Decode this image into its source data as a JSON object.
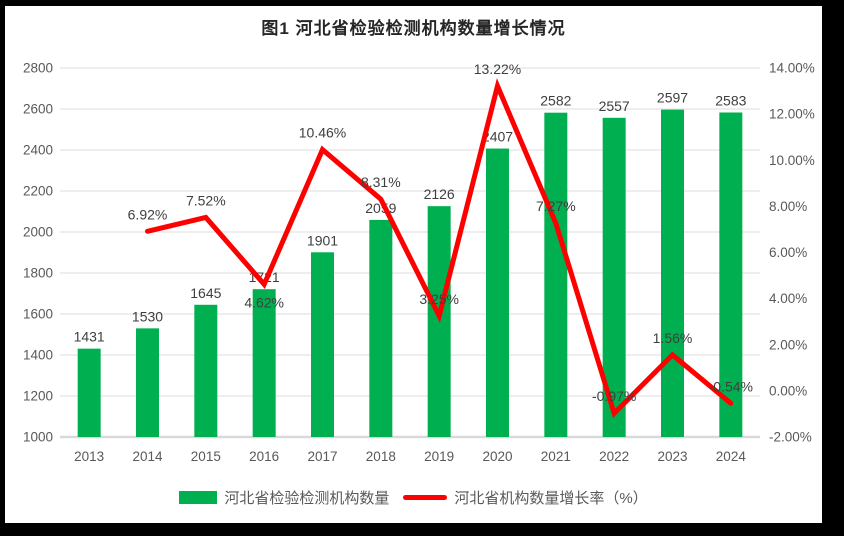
{
  "chart_data": {
    "type": "combo (bar + line)",
    "title": "图1  河北省检验检测机构数量增长情况",
    "categories": [
      "2013",
      "2014",
      "2015",
      "2016",
      "2017",
      "2018",
      "2019",
      "2020",
      "2021",
      "2022",
      "2023",
      "2024"
    ],
    "series": [
      {
        "name": "河北省检验检测机构数量",
        "type": "bar",
        "axis": "left",
        "color": "#00B050",
        "values": [
          1431,
          1530,
          1645,
          1721,
          1901,
          2059,
          2126,
          2407,
          2582,
          2557,
          2597,
          2583
        ],
        "labels": [
          "1431",
          "1530",
          "1645",
          "1721",
          "1901",
          "2059",
          "2126",
          "2407",
          "2582",
          "2557",
          "2597",
          "2583"
        ]
      },
      {
        "name": "河北省机构数量增长率（%）",
        "type": "line",
        "axis": "right",
        "color": "#FF0000",
        "start_index": 1,
        "values": [
          6.92,
          7.52,
          4.62,
          10.46,
          8.31,
          3.25,
          13.22,
          7.27,
          -0.97,
          1.56,
          -0.54
        ],
        "labels": [
          "6.92%",
          "7.52%",
          "4.62%",
          "10.46%",
          "8.31%",
          "3.25%",
          "13.22%",
          "7.27%",
          "-0.97%",
          "1.56%",
          "-0.54%"
        ]
      }
    ],
    "left_axis": {
      "min": 1000,
      "max": 2800,
      "step": 200,
      "tick_labels": [
        "1000",
        "1200",
        "1400",
        "1600",
        "1800",
        "2000",
        "2200",
        "2400",
        "2600",
        "2800"
      ]
    },
    "right_axis": {
      "min": -2,
      "max": 14,
      "step": 2,
      "tick_labels": [
        "-2.00%",
        "0.00%",
        "2.00%",
        "4.00%",
        "6.00%",
        "8.00%",
        "10.00%",
        "12.00%",
        "14.00%"
      ]
    },
    "grid": true,
    "legend_position": "bottom",
    "colors": {
      "grid_line": "#E4E4E4",
      "axis_line": "#D9D9D9",
      "tick_label": "#595959",
      "data_label": "#3F3F3F",
      "title": "#262626"
    }
  }
}
